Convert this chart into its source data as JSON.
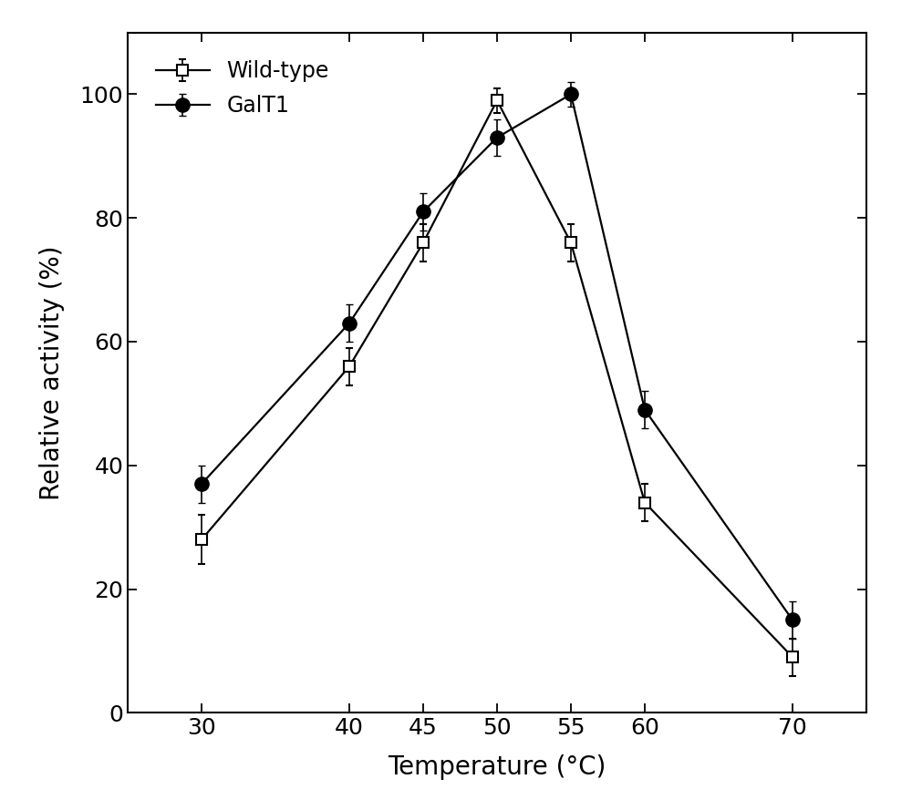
{
  "wildtype_x": [
    30,
    40,
    45,
    50,
    55,
    60,
    70
  ],
  "wildtype_y": [
    28,
    56,
    76,
    99,
    76,
    34,
    9
  ],
  "wildtype_yerr": [
    4,
    3,
    3,
    2,
    3,
    3,
    3
  ],
  "galt1_x": [
    30,
    40,
    45,
    50,
    55,
    60,
    70
  ],
  "galt1_y": [
    37,
    63,
    81,
    93,
    100,
    49,
    15
  ],
  "galt1_yerr": [
    3,
    3,
    3,
    3,
    2,
    3,
    3
  ],
  "xlabel": "Temperature (°C)",
  "ylabel": "Relative activity (%)",
  "xlim": [
    25,
    75
  ],
  "ylim": [
    0,
    110
  ],
  "xticks": [
    30,
    40,
    45,
    50,
    55,
    60,
    70
  ],
  "yticks": [
    0,
    20,
    40,
    60,
    80,
    100
  ],
  "legend_wildtype": "Wild-type",
  "legend_galt1": "GalT1",
  "line_color": "#000000",
  "bg_color": "#ffffff",
  "marker_size_square": 9,
  "marker_size_circle": 11,
  "linewidth": 1.6,
  "capsize": 3,
  "elinewidth": 1.2,
  "tick_labelsize": 18,
  "axis_labelsize": 20,
  "legend_fontsize": 17
}
